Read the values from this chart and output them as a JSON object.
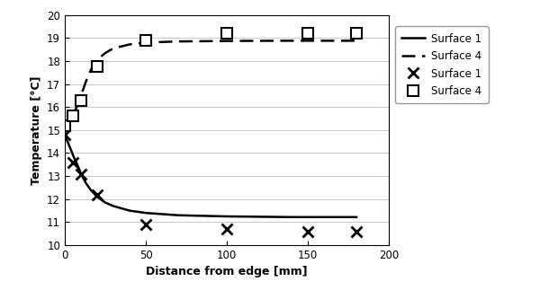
{
  "solid_line_surface1": {
    "x": [
      0,
      1,
      2,
      4,
      6,
      8,
      10,
      13,
      16,
      20,
      25,
      30,
      40,
      50,
      70,
      100,
      140,
      180
    ],
    "y": [
      14.8,
      14.6,
      14.45,
      14.1,
      13.75,
      13.45,
      13.1,
      12.7,
      12.4,
      12.1,
      11.85,
      11.7,
      11.5,
      11.4,
      11.3,
      11.25,
      11.22,
      11.22
    ]
  },
  "dashed_line_surface4": {
    "x": [
      0,
      1,
      2,
      4,
      6,
      8,
      10,
      13,
      16,
      20,
      25,
      30,
      40,
      50,
      70,
      100,
      140,
      180
    ],
    "y": [
      15.1,
      15.2,
      15.3,
      15.5,
      15.8,
      16.1,
      16.5,
      17.1,
      17.6,
      18.05,
      18.35,
      18.55,
      18.72,
      18.8,
      18.85,
      18.87,
      18.88,
      18.88
    ]
  },
  "points_surface1_x": {
    "x": [
      0,
      5,
      10,
      20,
      50,
      100,
      150,
      180
    ],
    "y": [
      14.8,
      13.6,
      13.1,
      12.2,
      10.9,
      10.7,
      10.6,
      10.6
    ]
  },
  "points_surface4_square": {
    "x": [
      0,
      5,
      10,
      20,
      50,
      100,
      150,
      180
    ],
    "y": [
      15.2,
      15.6,
      16.3,
      17.75,
      18.9,
      19.2,
      19.2,
      19.2
    ]
  },
  "xlim": [
    0,
    200
  ],
  "ylim": [
    10,
    20
  ],
  "xlabel": "Distance from edge [mm]",
  "ylabel": "Temperature [°C]",
  "yticks": [
    10,
    11,
    12,
    13,
    14,
    15,
    16,
    17,
    18,
    19,
    20
  ],
  "xticks": [
    0,
    50,
    100,
    150,
    200
  ],
  "legend_labels": [
    "Surface 1",
    "Surface 4",
    "Surface 1",
    "Surface 4"
  ],
  "background_color": "#ffffff",
  "grid_color": "#c8c8c8"
}
